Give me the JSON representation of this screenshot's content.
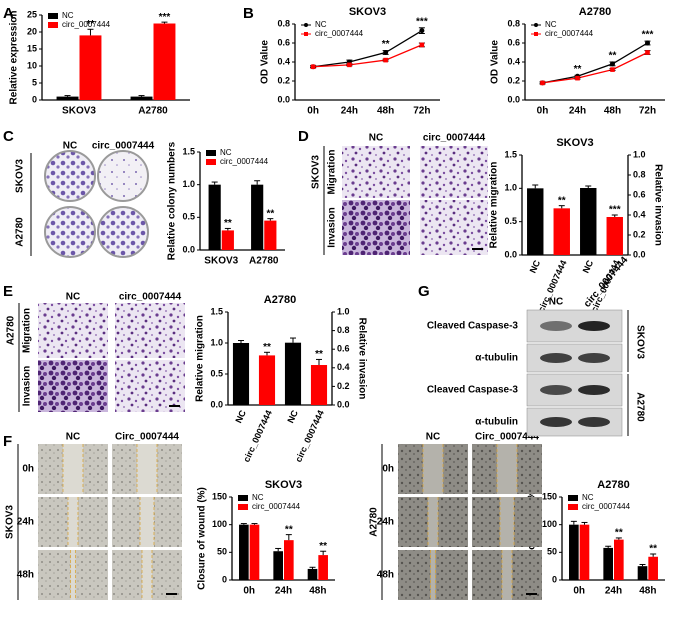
{
  "panel_labels": [
    "A",
    "B",
    "C",
    "D",
    "E",
    "F",
    "G"
  ],
  "chart_data": [
    {
      "type": "bar",
      "ylabel": "Relative expression",
      "categories": [
        "SKOV3",
        "A2780"
      ],
      "series": [
        {
          "name": "NC",
          "color": "#000000",
          "values": [
            1,
            1
          ],
          "errors": [
            0.3,
            0.3
          ]
        },
        {
          "name": "circ_0007444",
          "color": "#ff0000",
          "values": [
            19,
            22.5
          ],
          "errors": [
            1.8,
            0.4
          ],
          "annotations": [
            "**",
            "***"
          ]
        }
      ],
      "ylim": [
        0,
        25
      ],
      "yticks": [
        0,
        5,
        10,
        15,
        20,
        25
      ],
      "legend": "top-left"
    },
    {
      "type": "line",
      "title": "SKOV3",
      "ylabel": "OD Value",
      "categories": [
        "0h",
        "24h",
        "48h",
        "72h"
      ],
      "series": [
        {
          "name": "NC",
          "color": "#000000",
          "marker": "circle",
          "values": [
            0.35,
            0.4,
            0.5,
            0.73
          ],
          "errors": [
            0.01,
            0.02,
            0.02,
            0.03
          ]
        },
        {
          "name": "circ_0007444",
          "color": "#ff0000",
          "marker": "square",
          "values": [
            0.35,
            0.37,
            0.42,
            0.58
          ],
          "errors": [
            0.01,
            0.01,
            0.01,
            0.02
          ]
        }
      ],
      "annotations": [
        null,
        null,
        "**",
        "***"
      ],
      "ylim": [
        0,
        0.8
      ],
      "yticks": [
        {
          "value": 0,
          "label": "0.0"
        },
        0.2,
        0.4,
        0.6,
        0.8
      ],
      "legend": "top-left"
    },
    {
      "type": "line",
      "title": "A2780",
      "ylabel": "OD Value",
      "categories": [
        "0h",
        "24h",
        "48h",
        "72h"
      ],
      "series": [
        {
          "name": "NC",
          "color": "#000000",
          "marker": "circle",
          "values": [
            0.18,
            0.25,
            0.38,
            0.6
          ],
          "errors": [
            0.01,
            0.01,
            0.02,
            0.02
          ]
        },
        {
          "name": "circ_0007444",
          "color": "#ff0000",
          "marker": "square",
          "values": [
            0.18,
            0.23,
            0.32,
            0.5
          ],
          "errors": [
            0.01,
            0.01,
            0.01,
            0.02
          ]
        }
      ],
      "annotations": [
        null,
        "**",
        "**",
        "***"
      ],
      "ylim": [
        0,
        0.8
      ],
      "yticks": [
        {
          "value": 0,
          "label": "0.0"
        },
        0.2,
        0.4,
        0.6,
        0.8
      ],
      "legend": "top-left"
    },
    {
      "type": "bar",
      "ylabel": "Relative colony numbers",
      "categories": [
        "SKOV3",
        "A2780"
      ],
      "series": [
        {
          "name": "NC",
          "color": "#000000",
          "values": [
            1.0,
            1.0
          ],
          "errors": [
            0.04,
            0.06
          ]
        },
        {
          "name": "circ_0007444",
          "color": "#ff0000",
          "values": [
            0.3,
            0.45
          ],
          "errors": [
            0.03,
            0.03
          ],
          "annotations": [
            "**",
            "**"
          ]
        }
      ],
      "ylim": [
        0,
        1.5
      ],
      "yticks": [
        {
          "value": 0,
          "label": "0.0"
        },
        0.5,
        {
          "value": 1,
          "label": "1.0"
        },
        1.5
      ],
      "legend": "top-left"
    },
    {
      "type": "bar",
      "title": "SKOV3",
      "ylabel": "Relative migration",
      "y2label": "Relative invasion",
      "categories": [
        "NC",
        "circ_0007444",
        "NC",
        "circ_0007444"
      ],
      "values": [
        1.0,
        0.7,
        0.67,
        0.38
      ],
      "errors": [
        0.05,
        0.04,
        0.02,
        0.02
      ],
      "colors": [
        "#000000",
        "#ff0000",
        "#000000",
        "#ff0000"
      ],
      "axes": [
        "y",
        "y",
        "y2",
        "y2"
      ],
      "annotations": [
        null,
        "**",
        null,
        "***"
      ],
      "ylim": [
        0,
        1.5
      ],
      "yticks": [
        {
          "value": 0,
          "label": "0.0"
        },
        0.5,
        {
          "value": 1,
          "label": "1.0"
        },
        1.5
      ],
      "y2lim": [
        0,
        1.0
      ],
      "y2ticks": [
        {
          "value": 0,
          "label": "0.0"
        },
        0.2,
        0.4,
        0.6,
        0.8,
        {
          "value": 1,
          "label": "1.0"
        }
      ]
    },
    {
      "type": "bar",
      "title": "A2780",
      "ylabel": "Relative migration",
      "y2label": "Relative invasion",
      "categories": [
        "NC",
        "circ_0007444",
        "NC",
        "circ_0007444"
      ],
      "values": [
        1.0,
        0.8,
        0.67,
        0.43
      ],
      "errors": [
        0.04,
        0.05,
        0.05,
        0.06
      ],
      "colors": [
        "#000000",
        "#ff0000",
        "#000000",
        "#ff0000"
      ],
      "axes": [
        "y",
        "y",
        "y2",
        "y2"
      ],
      "annotations": [
        null,
        "**",
        null,
        "**"
      ],
      "ylim": [
        0,
        1.5
      ],
      "yticks": [
        {
          "value": 0,
          "label": "0.0"
        },
        0.5,
        {
          "value": 1,
          "label": "1.0"
        },
        1.5
      ],
      "y2lim": [
        0,
        1.0
      ],
      "y2ticks": [
        {
          "value": 0,
          "label": "0.0"
        },
        0.2,
        0.4,
        0.6,
        0.8,
        {
          "value": 1,
          "label": "1.0"
        }
      ]
    },
    {
      "type": "bar",
      "title": "SKOV3",
      "ylabel": "Closure of wound (%)",
      "categories": [
        "0h",
        "24h",
        "48h"
      ],
      "series": [
        {
          "name": "NC",
          "color": "#000000",
          "values": [
            100,
            52,
            20
          ],
          "errors": [
            2,
            5,
            3
          ]
        },
        {
          "name": "circ_0007444",
          "color": "#ff0000",
          "values": [
            100,
            72,
            45
          ],
          "errors": [
            2,
            10,
            7
          ],
          "annotations": [
            null,
            "**",
            "**"
          ]
        }
      ],
      "ylim": [
        0,
        150
      ],
      "yticks": [
        0,
        50,
        100,
        150
      ],
      "legend": "top-left"
    },
    {
      "type": "bar",
      "title": "A2780",
      "ylabel": "Closure of wound (%)",
      "categories": [
        "0h",
        "24h",
        "48h"
      ],
      "series": [
        {
          "name": "NC",
          "color": "#000000",
          "values": [
            100,
            58,
            25
          ],
          "errors": [
            6,
            3,
            3
          ]
        },
        {
          "name": "circ_0007444",
          "color": "#ff0000",
          "values": [
            100,
            73,
            42
          ],
          "errors": [
            4,
            3,
            5
          ],
          "annotations": [
            null,
            "**",
            "**"
          ]
        }
      ],
      "ylim": [
        0,
        150
      ],
      "yticks": [
        0,
        50,
        100,
        150
      ],
      "legend": "top-left"
    }
  ],
  "images": {
    "C": {
      "columns": [
        "NC",
        "circ_0007444"
      ],
      "rows": [
        "SKOV3",
        "A2780"
      ]
    },
    "D": {
      "columns": [
        "NC",
        "circ_0007444"
      ],
      "group": "SKOV3",
      "rows": [
        "Migration",
        "Invasion"
      ]
    },
    "E": {
      "columns": [
        "NC",
        "circ_0007444"
      ],
      "group": "A2780",
      "rows": [
        "Migration",
        "Invasion"
      ]
    },
    "F_left": {
      "columns": [
        "NC",
        "Circ_0007444"
      ],
      "group": "SKOV3",
      "rows": [
        "0h",
        "24h",
        "48h"
      ]
    },
    "F_right": {
      "columns": [
        "NC",
        "Circ_0007444"
      ],
      "group": "A2780",
      "rows": [
        "0h",
        "24h",
        "48h"
      ]
    },
    "G": {
      "columns": [
        "NC",
        "circ_0007444"
      ],
      "rows": [
        "Cleaved Caspase-3",
        "α-tubulin",
        "Cleaved Caspase-3",
        "α-tubulin"
      ],
      "groups": [
        "SKOV3",
        "A2780"
      ]
    }
  }
}
